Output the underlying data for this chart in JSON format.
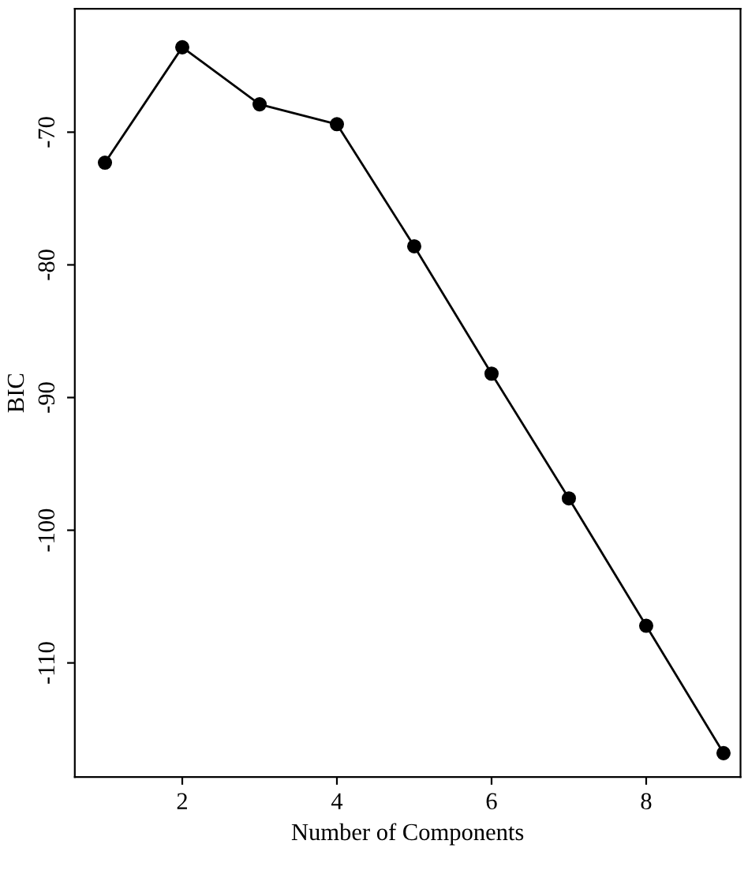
{
  "chart_data": {
    "type": "line",
    "xlabel": "Number of Components",
    "ylabel": "BIC",
    "x": [
      1,
      2,
      3,
      4,
      5,
      6,
      7,
      8,
      9
    ],
    "series": [
      {
        "color": "#000000",
        "values": [
          -72.3,
          -63.6,
          -67.9,
          -69.4,
          -78.6,
          -88.2,
          -97.6,
          -107.2,
          -116.8
        ]
      }
    ],
    "xlim": [
      0.61,
      9.22
    ],
    "ylim": [
      -118.6,
      -60.7
    ],
    "xticks": [
      2,
      4,
      6,
      8
    ],
    "yticks": [
      -70,
      -80,
      -90,
      -100,
      -110
    ],
    "grid": false,
    "legend": false,
    "marker": "circle",
    "line_style": "solid"
  }
}
